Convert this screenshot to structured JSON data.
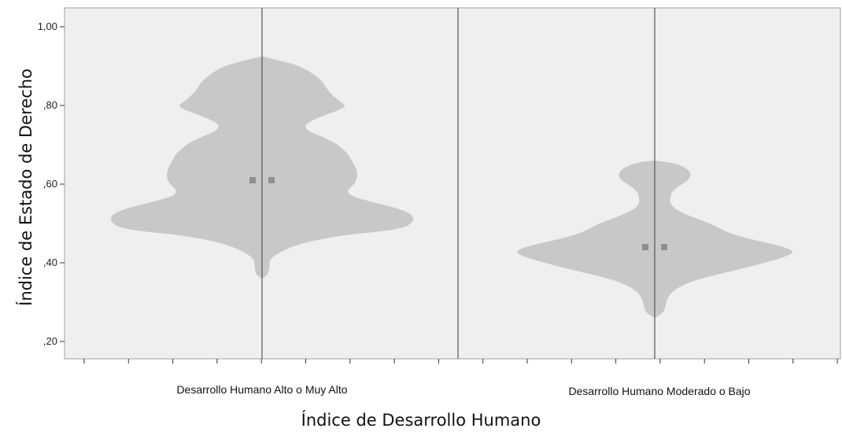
{
  "chart_data": {
    "type": "violin",
    "title": "",
    "xlabel": "Índice de Desarrollo Humano",
    "ylabel": "Índice de Estado de Derecho",
    "ylim": [
      0.17,
      1.045
    ],
    "yticks": [
      {
        "value": 0.2,
        "label": ",20"
      },
      {
        "value": 0.4,
        "label": ",40"
      },
      {
        "value": 0.6,
        "label": ",60"
      },
      {
        "value": 0.8,
        "label": ",80"
      },
      {
        "value": 1.0,
        "label": "1,00"
      }
    ],
    "grid": false,
    "legend": "none",
    "colors": {
      "violin": "#c8c8c8",
      "background": "#efefef",
      "median": "#8f8f8f",
      "line": "#555555"
    },
    "categories": [
      "Desarrollo Humano Alto o Muy Alto",
      "Desarrollo Humano Moderado o Bajo"
    ],
    "series": [
      {
        "category": "Desarrollo Humano Alto o Muy Alto",
        "median": 0.61,
        "density_profile": [
          [
            0.925,
            0.0
          ],
          [
            0.915,
            0.11
          ],
          [
            0.9,
            0.25
          ],
          [
            0.88,
            0.34
          ],
          [
            0.86,
            0.4
          ],
          [
            0.84,
            0.43
          ],
          [
            0.82,
            0.48
          ],
          [
            0.805,
            0.53
          ],
          [
            0.8,
            0.55
          ],
          [
            0.79,
            0.52
          ],
          [
            0.775,
            0.41
          ],
          [
            0.76,
            0.32
          ],
          [
            0.75,
            0.28
          ],
          [
            0.735,
            0.3
          ],
          [
            0.72,
            0.4
          ],
          [
            0.705,
            0.48
          ],
          [
            0.69,
            0.53
          ],
          [
            0.675,
            0.57
          ],
          [
            0.66,
            0.59
          ],
          [
            0.64,
            0.62
          ],
          [
            0.62,
            0.63
          ],
          [
            0.6,
            0.61
          ],
          [
            0.585,
            0.56
          ],
          [
            0.57,
            0.58
          ],
          [
            0.555,
            0.72
          ],
          [
            0.54,
            0.88
          ],
          [
            0.525,
            0.98
          ],
          [
            0.51,
            1.0
          ],
          [
            0.5,
            0.98
          ],
          [
            0.49,
            0.94
          ],
          [
            0.48,
            0.8
          ],
          [
            0.47,
            0.52
          ],
          [
            0.45,
            0.26
          ],
          [
            0.43,
            0.13
          ],
          [
            0.41,
            0.05
          ],
          [
            0.39,
            0.05
          ],
          [
            0.37,
            0.04
          ],
          [
            0.36,
            0.0
          ]
        ]
      },
      {
        "category": "Desarrollo Humano Moderado o Bajo",
        "median": 0.44,
        "density_profile": [
          [
            0.66,
            0.0
          ],
          [
            0.655,
            0.13
          ],
          [
            0.64,
            0.23
          ],
          [
            0.625,
            0.26
          ],
          [
            0.61,
            0.24
          ],
          [
            0.595,
            0.17
          ],
          [
            0.58,
            0.12
          ],
          [
            0.565,
            0.11
          ],
          [
            0.55,
            0.11
          ],
          [
            0.535,
            0.15
          ],
          [
            0.52,
            0.24
          ],
          [
            0.505,
            0.36
          ],
          [
            0.49,
            0.45
          ],
          [
            0.475,
            0.53
          ],
          [
            0.46,
            0.68
          ],
          [
            0.445,
            0.87
          ],
          [
            0.43,
            1.0
          ],
          [
            0.415,
            0.93
          ],
          [
            0.4,
            0.78
          ],
          [
            0.385,
            0.62
          ],
          [
            0.37,
            0.44
          ],
          [
            0.355,
            0.28
          ],
          [
            0.34,
            0.18
          ],
          [
            0.325,
            0.12
          ],
          [
            0.31,
            0.09
          ],
          [
            0.295,
            0.08
          ],
          [
            0.28,
            0.07
          ],
          [
            0.27,
            0.05
          ],
          [
            0.26,
            0.0
          ]
        ]
      }
    ]
  }
}
